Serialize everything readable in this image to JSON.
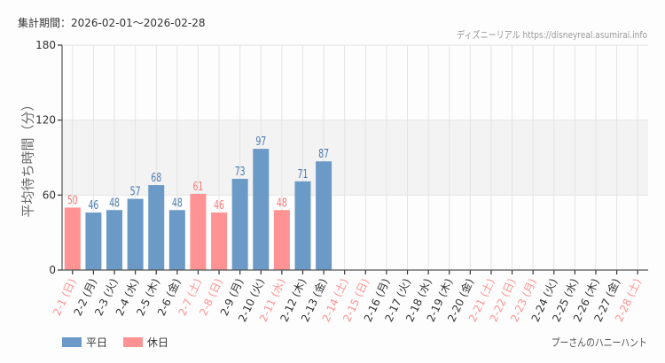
{
  "header": {
    "period": "集計期間：2026-02-01〜2026-02-28",
    "credit": "ディズニーリアル https://disneyreal.asumirai.info"
  },
  "footer": {
    "attraction": "プーさんのハニーハント"
  },
  "legend": {
    "weekday": "平日",
    "holiday": "休日"
  },
  "colors": {
    "weekday": "#6c9ac7",
    "holiday": "#ff9393",
    "weekday_text": "#4a7ab0",
    "holiday_text": "#f47a7a",
    "band": "#f3f3f3",
    "grid": "#e4e4e4"
  },
  "chart_data": {
    "type": "bar",
    "title": "",
    "xlabel": "",
    "ylabel": "平均待ち時間（分）",
    "ylim": [
      0,
      180
    ],
    "yticks": [
      0,
      60,
      120,
      180
    ],
    "shaded_band": [
      60,
      120
    ],
    "grid": true,
    "legend_position": "bottom-left",
    "categories": [
      "2-1 (日)",
      "2-2 (月)",
      "2-3 (火)",
      "2-4 (水)",
      "2-5 (木)",
      "2-6 (金)",
      "2-7 (土)",
      "2-8 (日)",
      "2-9 (月)",
      "2-10 (火)",
      "2-11 (水)",
      "2-12 (木)",
      "2-13 (金)",
      "2-14 (土)",
      "2-15 (日)",
      "2-16 (月)",
      "2-17 (火)",
      "2-18 (水)",
      "2-19 (木)",
      "2-20 (金)",
      "2-21 (土)",
      "2-22 (日)",
      "2-23 (月)",
      "2-24 (火)",
      "2-25 (水)",
      "2-26 (木)",
      "2-27 (金)",
      "2-28 (土)"
    ],
    "day_type": [
      "holiday",
      "weekday",
      "weekday",
      "weekday",
      "weekday",
      "weekday",
      "holiday",
      "holiday",
      "weekday",
      "weekday",
      "holiday",
      "weekday",
      "weekday",
      "holiday",
      "holiday",
      "weekday",
      "weekday",
      "weekday",
      "weekday",
      "weekday",
      "holiday",
      "holiday",
      "holiday",
      "weekday",
      "weekday",
      "weekday",
      "weekday",
      "holiday"
    ],
    "values": [
      50,
      46,
      48,
      57,
      68,
      48,
      61,
      46,
      73,
      97,
      48,
      71,
      87,
      null,
      null,
      null,
      null,
      null,
      null,
      null,
      null,
      null,
      null,
      null,
      null,
      null,
      null,
      null
    ],
    "series": [
      {
        "name": "平日",
        "values": [
          null,
          46,
          48,
          57,
          68,
          48,
          null,
          null,
          73,
          97,
          null,
          71,
          87,
          null,
          null,
          null,
          null,
          null,
          null,
          null,
          null,
          null,
          null,
          null,
          null,
          null,
          null,
          null
        ]
      },
      {
        "name": "休日",
        "values": [
          50,
          null,
          null,
          null,
          null,
          null,
          61,
          46,
          null,
          null,
          48,
          null,
          null,
          null,
          null,
          null,
          null,
          null,
          null,
          null,
          null,
          null,
          null,
          null,
          null,
          null,
          null,
          null
        ]
      }
    ]
  }
}
